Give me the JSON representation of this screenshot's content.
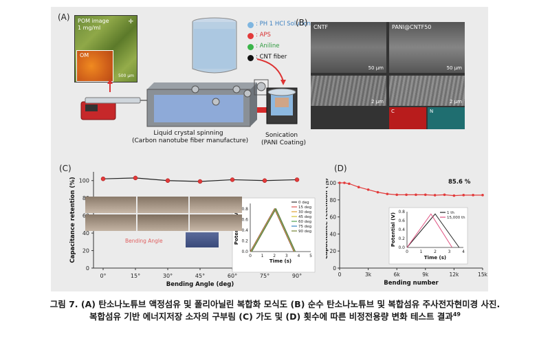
{
  "panels": {
    "a": {
      "label": "(A)",
      "pom_title": "POM image",
      "pom_conc": "1 mg/ml",
      "om_label": "OM",
      "om_scale": "500 μm",
      "legend": [
        {
          "text": ": PH 1 HCl Solution",
          "color": "#7fb6e0",
          "textcolor": "#3a7fc0"
        },
        {
          "text": ": APS",
          "color": "#e23a3a",
          "textcolor": "#d83030"
        },
        {
          "text": ": Aniline",
          "color": "#3bb54a",
          "textcolor": "#2f9a3f"
        },
        {
          "text": ": CNT fiber",
          "color": "#111111",
          "textcolor": "#111111"
        }
      ],
      "spinning_line1": "Liquid crystal spinning",
      "spinning_line2": "(Carbon nanotube fiber manufacture)",
      "sonication_line1": "Sonication",
      "sonication_line2": "(PANI Coating)"
    },
    "b": {
      "label": "(B)",
      "left_title": "CNTF",
      "right_title": "PANI@CNTF50",
      "scale_50": "50 μm",
      "scale_2": "2 μm",
      "map_c": "C",
      "map_n": "N"
    },
    "c": {
      "label": "(C)",
      "bending_angle_label": "Bending Angle",
      "inset_xlabel": "Time (s)",
      "inset_ylabel": "Potential (V)"
    },
    "d": {
      "label": "(D)",
      "annotation": "85.6 %",
      "inset_xlabel": "Time (s)",
      "inset_ylabel": "Potential (V)"
    }
  },
  "chart_data": [
    {
      "id": "C",
      "type": "line",
      "xlabel": "Bending Angle (deg)",
      "ylabel": "Capacitance retention (%)",
      "x_ticklabels": [
        "0°",
        "15°",
        "30°",
        "45°",
        "60°",
        "75°",
        "90°"
      ],
      "x": [
        0,
        15,
        30,
        45,
        60,
        75,
        90
      ],
      "y_ticks": [
        0,
        20,
        40,
        60,
        80,
        100
      ],
      "ylim": [
        0,
        110
      ],
      "series": [
        {
          "values": [
            102,
            103,
            100,
            99,
            101,
            100,
            101
          ],
          "color": "#e23a3a"
        }
      ]
    },
    {
      "id": "C-inset",
      "type": "line",
      "xlabel": "Time (s)",
      "ylabel": "Potential (V)",
      "xlim": [
        0,
        5
      ],
      "ylim": [
        0,
        0.9
      ],
      "x_ticks": [
        0,
        1,
        2,
        3,
        4,
        5
      ],
      "y_ticks": [
        0.0,
        0.2,
        0.4,
        0.6,
        0.8
      ],
      "legend_position": "top-right",
      "series": [
        {
          "name": "0 deg",
          "color": "#333333",
          "x": [
            0,
            2.0,
            3.6
          ],
          "values": [
            0,
            0.8,
            0
          ]
        },
        {
          "name": "15 deg",
          "color": "#e05050",
          "x": [
            0,
            2.0,
            3.6
          ],
          "values": [
            0,
            0.8,
            0
          ]
        },
        {
          "name": "30 deg",
          "color": "#e0a030",
          "x": [
            0,
            2.0,
            3.6
          ],
          "values": [
            0,
            0.8,
            0
          ]
        },
        {
          "name": "45 deg",
          "color": "#d0c030",
          "x": [
            0,
            2.0,
            3.6
          ],
          "values": [
            0,
            0.8,
            0
          ]
        },
        {
          "name": "60 deg",
          "color": "#50a050",
          "x": [
            0,
            2.0,
            3.6
          ],
          "values": [
            0,
            0.8,
            0
          ]
        },
        {
          "name": "75 deg",
          "color": "#3080c0",
          "x": [
            0,
            2.0,
            3.6
          ],
          "values": [
            0,
            0.8,
            0
          ]
        },
        {
          "name": "90 deg",
          "color": "#708030",
          "x": [
            0,
            2.0,
            3.6
          ],
          "values": [
            0,
            0.8,
            0
          ]
        }
      ]
    },
    {
      "id": "D",
      "type": "line",
      "xlabel": "Bending number",
      "ylabel": "Capacitance retention (%)",
      "x_ticklabels": [
        "0",
        "3k",
        "6k",
        "9k",
        "12k",
        "15k"
      ],
      "x_ticks": [
        0,
        3000,
        6000,
        9000,
        12000,
        15000
      ],
      "y_ticks": [
        0,
        20,
        40,
        60,
        80,
        100
      ],
      "xlim": [
        0,
        15000
      ],
      "ylim": [
        0,
        100
      ],
      "series": [
        {
          "color": "#e23a3a",
          "x": [
            0,
            500,
            1000,
            2000,
            3000,
            4000,
            5000,
            6000,
            7000,
            8000,
            9000,
            10000,
            11000,
            12000,
            13000,
            14000,
            15000
          ],
          "values": [
            100,
            100,
            99,
            95,
            92,
            89,
            87,
            86,
            86,
            86,
            86,
            85.5,
            86,
            85,
            85.6,
            85.6,
            85.6
          ]
        }
      ]
    },
    {
      "id": "D-inset",
      "type": "line",
      "xlabel": "Time (s)",
      "ylabel": "Potential (V)",
      "xlim": [
        0,
        4
      ],
      "ylim": [
        0,
        0.8
      ],
      "x_ticks": [
        0,
        1,
        2,
        3,
        4
      ],
      "y_ticks": [
        0.0,
        0.2,
        0.4,
        0.6,
        0.8
      ],
      "legend_position": "top-right",
      "series": [
        {
          "name": "1 th",
          "color": "#222222",
          "x": [
            0,
            2.0,
            3.7
          ],
          "values": [
            0,
            0.75,
            0
          ]
        },
        {
          "name": "15,000 th",
          "color": "#e05080",
          "x": [
            0,
            1.7,
            3.2
          ],
          "values": [
            0,
            0.75,
            0
          ]
        }
      ]
    }
  ],
  "caption": {
    "line1": "그림 7. (A) 탄소나노튜브 액정섬유 및 폴리아닐린 복합화 모식도 (B) 순수 탄소나노튜브 및 복합섬유 주사전자현미경 사진.",
    "line2": "복합섬유 기반 에너지저장 소자의 구부림 (C) 가도 및 (D) 횟수에 따른 비정전용량 변화 테스트 결과",
    "ref": "49"
  }
}
